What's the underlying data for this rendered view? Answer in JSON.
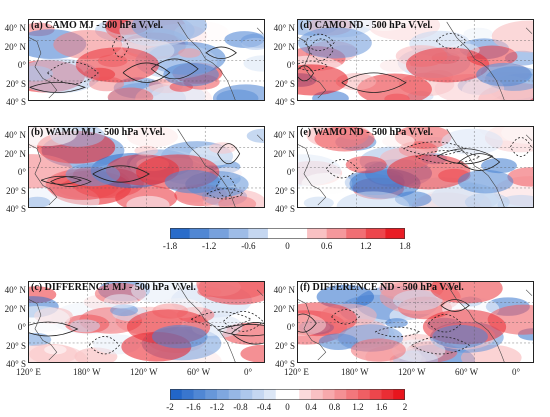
{
  "panels": [
    {
      "id": "a",
      "title": "(a) CAMO MJ - 500 hPa V.Vel."
    },
    {
      "id": "d",
      "title": "(d) CAMO ND - 500 hPa V.Vel."
    },
    {
      "id": "b",
      "title": "(b) WAMO MJ - 500 hPa V.Vel."
    },
    {
      "id": "e",
      "title": "(e) WAMO ND - 500 hPa V.Vel."
    },
    {
      "id": "c",
      "title": "(c) DIFFERENCE MJ - 500 hPa V.Vel."
    },
    {
      "id": "f",
      "title": "(f) DIFFERENCE ND - 500 hPa V.Vel."
    }
  ],
  "lat_labels": [
    "40° N",
    "20° N",
    "0°",
    "20° S",
    "40° S"
  ],
  "lon_labels": [
    "120° E",
    "180° W",
    "120° W",
    "60° W",
    "0°"
  ],
  "colorbar_top": {
    "ticks": [
      "-1.8",
      "-1.2",
      "-0.6",
      "0",
      "0.6",
      "1.2",
      "1.8"
    ],
    "range": [
      -1.8,
      1.8
    ]
  },
  "colorbar_bottom": {
    "ticks": [
      "-2",
      "-1.6",
      "-1.2",
      "-0.8",
      "-0.4",
      "0",
      "0.4",
      "0.8",
      "1.2",
      "1.6",
      "2"
    ],
    "range": [
      -2,
      2
    ]
  },
  "colors": {
    "negative": "#2166c8",
    "positive": "#e8141c",
    "neutral": "#ffffff"
  }
}
